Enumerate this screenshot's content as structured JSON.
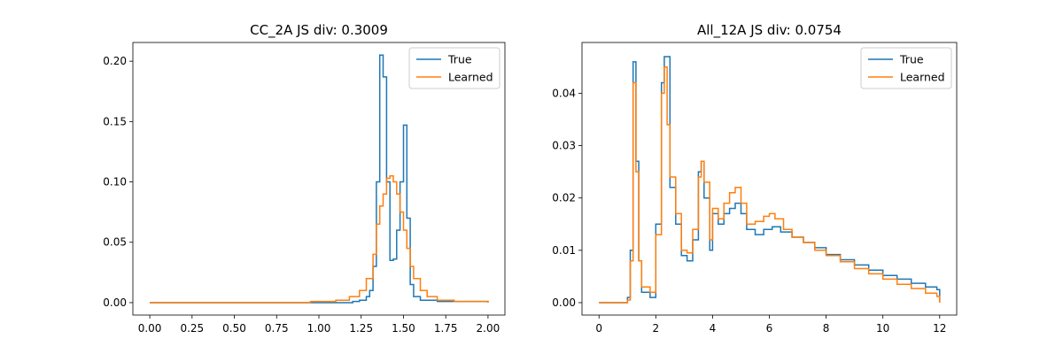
{
  "chart_data": [
    {
      "type": "line",
      "title": "CC_2A JS div: 0.3009",
      "xlabel": "",
      "ylabel": "",
      "xlim": [
        -0.1,
        2.1
      ],
      "ylim": [
        -0.0103,
        0.2155
      ],
      "x_ticks": [
        "0.00",
        "0.25",
        "0.50",
        "0.75",
        "1.00",
        "1.25",
        "1.50",
        "1.75",
        "2.00"
      ],
      "y_ticks": [
        "0.00",
        "0.05",
        "0.10",
        "0.15",
        "0.20"
      ],
      "legend_position": "top-right",
      "grid": false,
      "series": [
        {
          "name": "True",
          "color": "#1f77b4",
          "points": [
            [
              0,
              0
            ],
            [
              0.5,
              0
            ],
            [
              1.0,
              0
            ],
            [
              1.2,
              0.001
            ],
            [
              1.24,
              0.002
            ],
            [
              1.28,
              0.005
            ],
            [
              1.3,
              0.01
            ],
            [
              1.32,
              0.03
            ],
            [
              1.34,
              0.1
            ],
            [
              1.36,
              0.205
            ],
            [
              1.38,
              0.187
            ],
            [
              1.4,
              0.1
            ],
            [
              1.42,
              0.035
            ],
            [
              1.44,
              0.036
            ],
            [
              1.46,
              0.06
            ],
            [
              1.48,
              0.1
            ],
            [
              1.5,
              0.147
            ],
            [
              1.52,
              0.07
            ],
            [
              1.54,
              0.015
            ],
            [
              1.56,
              0.005
            ],
            [
              1.6,
              0.002
            ],
            [
              1.7,
              0.001
            ],
            [
              2.0,
              0
            ]
          ]
        },
        {
          "name": "Learned",
          "color": "#ff7f0e",
          "points": [
            [
              0,
              0
            ],
            [
              0.5,
              0
            ],
            [
              0.95,
              0.001
            ],
            [
              1.1,
              0.002
            ],
            [
              1.18,
              0.005
            ],
            [
              1.24,
              0.01
            ],
            [
              1.28,
              0.02
            ],
            [
              1.32,
              0.04
            ],
            [
              1.34,
              0.065
            ],
            [
              1.36,
              0.08
            ],
            [
              1.38,
              0.09
            ],
            [
              1.4,
              0.103
            ],
            [
              1.42,
              0.105
            ],
            [
              1.44,
              0.1
            ],
            [
              1.46,
              0.09
            ],
            [
              1.48,
              0.075
            ],
            [
              1.5,
              0.06
            ],
            [
              1.52,
              0.045
            ],
            [
              1.54,
              0.03
            ],
            [
              1.56,
              0.02
            ],
            [
              1.6,
              0.01
            ],
            [
              1.64,
              0.005
            ],
            [
              1.7,
              0.002
            ],
            [
              1.8,
              0.001
            ],
            [
              2.0,
              0
            ]
          ]
        }
      ]
    },
    {
      "type": "line",
      "title": "All_12A JS div: 0.0754",
      "xlabel": "",
      "ylabel": "",
      "xlim": [
        -0.6,
        12.6
      ],
      "ylim": [
        -0.00237,
        0.0497
      ],
      "x_ticks": [
        "0",
        "2",
        "4",
        "6",
        "8",
        "10",
        "12"
      ],
      "y_ticks": [
        "0.00",
        "0.01",
        "0.02",
        "0.03",
        "0.04"
      ],
      "legend_position": "top-right",
      "grid": false,
      "series": [
        {
          "name": "True",
          "color": "#1f77b4",
          "points": [
            [
              0,
              0
            ],
            [
              0.8,
              0
            ],
            [
              1.0,
              0.001
            ],
            [
              1.1,
              0.01
            ],
            [
              1.2,
              0.046
            ],
            [
              1.3,
              0.027
            ],
            [
              1.4,
              0.008
            ],
            [
              1.5,
              0.002
            ],
            [
              1.8,
              0.001
            ],
            [
              2.0,
              0.015
            ],
            [
              2.2,
              0.042
            ],
            [
              2.3,
              0.047
            ],
            [
              2.5,
              0.022
            ],
            [
              2.7,
              0.015
            ],
            [
              2.9,
              0.009
            ],
            [
              3.1,
              0.008
            ],
            [
              3.3,
              0.012
            ],
            [
              3.5,
              0.025
            ],
            [
              3.6,
              0.027
            ],
            [
              3.7,
              0.02
            ],
            [
              3.9,
              0.01
            ],
            [
              4.0,
              0.017
            ],
            [
              4.2,
              0.015
            ],
            [
              4.4,
              0.017
            ],
            [
              4.6,
              0.018
            ],
            [
              4.8,
              0.019
            ],
            [
              5.0,
              0.017
            ],
            [
              5.2,
              0.014
            ],
            [
              5.5,
              0.013
            ],
            [
              5.8,
              0.014
            ],
            [
              6.1,
              0.0145
            ],
            [
              6.4,
              0.0135
            ],
            [
              6.8,
              0.0125
            ],
            [
              7.2,
              0.0115
            ],
            [
              7.6,
              0.0105
            ],
            [
              8.0,
              0.0092
            ],
            [
              8.5,
              0.0082
            ],
            [
              9.0,
              0.0072
            ],
            [
              9.5,
              0.0062
            ],
            [
              10.0,
              0.0052
            ],
            [
              10.5,
              0.0045
            ],
            [
              11.0,
              0.0037
            ],
            [
              11.5,
              0.003
            ],
            [
              11.9,
              0.0025
            ],
            [
              12.0,
              0
            ]
          ]
        },
        {
          "name": "Learned",
          "color": "#ff7f0e",
          "points": [
            [
              0,
              0
            ],
            [
              0.8,
              0
            ],
            [
              1.0,
              0.0005
            ],
            [
              1.1,
              0.008
            ],
            [
              1.2,
              0.042
            ],
            [
              1.3,
              0.025
            ],
            [
              1.4,
              0.008
            ],
            [
              1.5,
              0.003
            ],
            [
              1.8,
              0.002
            ],
            [
              2.0,
              0.013
            ],
            [
              2.2,
              0.04
            ],
            [
              2.3,
              0.045
            ],
            [
              2.4,
              0.034
            ],
            [
              2.5,
              0.024
            ],
            [
              2.7,
              0.017
            ],
            [
              2.9,
              0.01
            ],
            [
              3.1,
              0.0095
            ],
            [
              3.3,
              0.014
            ],
            [
              3.5,
              0.024
            ],
            [
              3.6,
              0.027
            ],
            [
              3.7,
              0.023
            ],
            [
              3.9,
              0.012
            ],
            [
              4.0,
              0.018
            ],
            [
              4.2,
              0.016
            ],
            [
              4.4,
              0.019
            ],
            [
              4.6,
              0.021
            ],
            [
              4.8,
              0.022
            ],
            [
              5.0,
              0.019
            ],
            [
              5.2,
              0.015
            ],
            [
              5.5,
              0.0155
            ],
            [
              5.8,
              0.0165
            ],
            [
              6.0,
              0.017
            ],
            [
              6.2,
              0.016
            ],
            [
              6.5,
              0.014
            ],
            [
              6.8,
              0.0125
            ],
            [
              7.2,
              0.0115
            ],
            [
              7.6,
              0.01
            ],
            [
              8.0,
              0.009
            ],
            [
              8.5,
              0.0078
            ],
            [
              9.0,
              0.0065
            ],
            [
              9.5,
              0.0055
            ],
            [
              10.0,
              0.0045
            ],
            [
              10.5,
              0.0035
            ],
            [
              11.0,
              0.0027
            ],
            [
              11.5,
              0.0018
            ],
            [
              11.9,
              0.0012
            ],
            [
              12.0,
              0
            ]
          ]
        }
      ]
    }
  ]
}
